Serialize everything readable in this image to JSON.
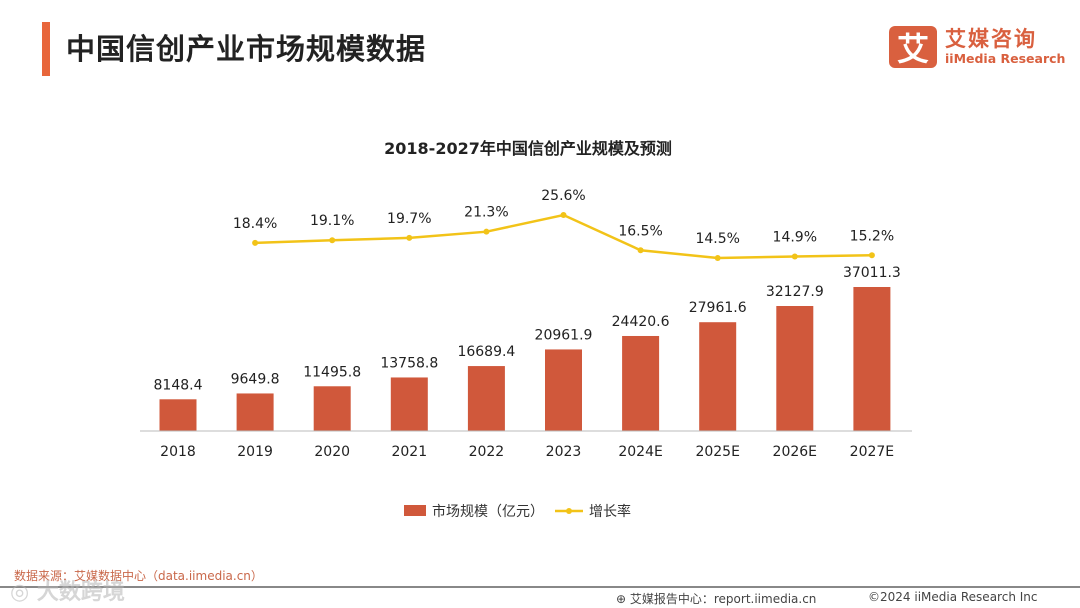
{
  "header": {
    "title": "中国信创产业市场规模数据",
    "logo_mark": "艾",
    "logo_cn": "艾媒咨询",
    "logo_en": "iiMedia Research"
  },
  "footer": {
    "source": "数据来源：艾媒数据中心（data.iimedia.cn）",
    "report_center": "艾媒报告中心：report.iimedia.cn",
    "copyright": "©2024  iiMedia Research  Inc",
    "watermark": "大数跨境"
  },
  "colors": {
    "bar": "#d0583b",
    "line": "#f2c318",
    "accent": "#e8663b"
  },
  "chart_data": {
    "type": "bar+line",
    "title": "2018-2027年中国信创产业规模及预测",
    "categories": [
      "2018",
      "2019",
      "2020",
      "2021",
      "2022",
      "2023",
      "2024E",
      "2025E",
      "2026E",
      "2027E"
    ],
    "series": [
      {
        "name": "市场规模（亿元）",
        "type": "bar",
        "values": [
          8148.4,
          9649.8,
          11495.8,
          13758.8,
          16689.4,
          20961.9,
          24420.6,
          27961.6,
          32127.9,
          37011.3
        ],
        "labels": [
          "8148.4",
          "9649.8",
          "11495.8",
          "13758.8",
          "16689.4",
          "20961.9",
          "24420.6",
          "27961.6",
          "32127.9",
          "37011.3"
        ]
      },
      {
        "name": "增长率",
        "type": "line",
        "values": [
          null,
          18.4,
          19.1,
          19.7,
          21.3,
          25.6,
          16.5,
          14.5,
          14.9,
          15.2
        ],
        "labels": [
          "",
          "18.4%",
          "19.1%",
          "19.7%",
          "21.3%",
          "25.6%",
          "16.5%",
          "14.5%",
          "14.9%",
          "15.2%"
        ]
      }
    ],
    "legend": "bottom-center",
    "grid": false
  }
}
